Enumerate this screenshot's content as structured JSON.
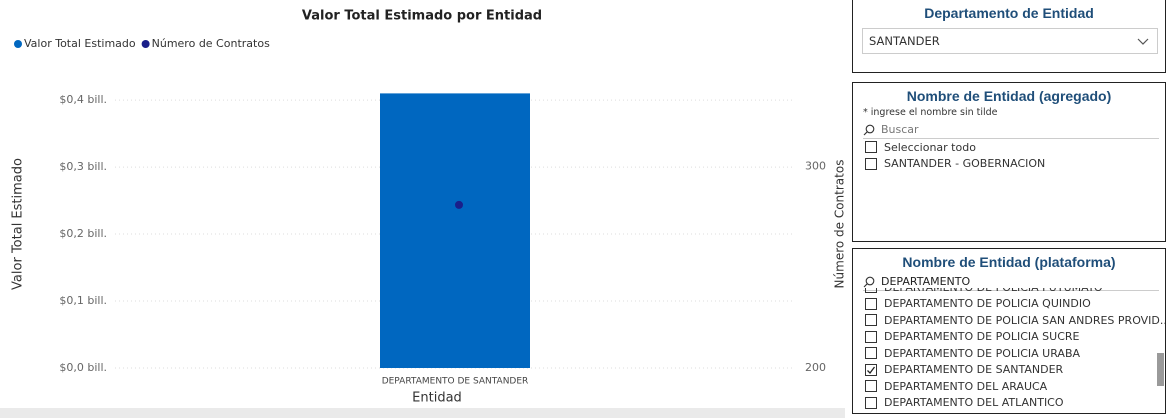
{
  "chart_data": {
    "type": "combo",
    "title": "Valor Total Estimado por Entidad",
    "legend": "top-left",
    "categories": [
      "DEPARTAMENTO DE SANTANDER"
    ],
    "series": [
      {
        "name": "Valor Total Estimado",
        "color": "#0067c0",
        "kind": "bar",
        "values": [
          0.41
        ]
      },
      {
        "name": "Número de Contratos",
        "color": "#1a1f8a",
        "kind": "dot",
        "axis": "y2",
        "values": [
          281
        ]
      }
    ],
    "xlabel": "Entidad",
    "ylabel": "Valor Total Estimado",
    "y2label": "Número de Contratos",
    "ylim": [
      0,
      0.43
    ],
    "yticks": [
      {
        "value": 0,
        "label": "$0,0 bill."
      },
      {
        "value": 0.1,
        "label": "$0,1 bill."
      },
      {
        "value": 0.2,
        "label": "$0,2 bill."
      },
      {
        "value": 0.3,
        "label": "$0,3 bill."
      },
      {
        "value": 0.4,
        "label": "$0,4 bill."
      }
    ],
    "y2lim": [
      200,
      343
    ],
    "y2ticks": [
      200,
      300
    ],
    "grid": true
  },
  "slicers": [
    {
      "title": "Departamento de Entidad",
      "dropdown": "SANTANDER"
    },
    {
      "title": "Nombre de Entidad (agregado)",
      "note": "* ingrese el nombre sin tilde",
      "search": "Buscar",
      "items": [
        {
          "label": "Seleccionar todo",
          "checked": false
        },
        {
          "label": "SANTANDER - GOBERNACION",
          "checked": false
        }
      ]
    },
    {
      "title": "Nombre de Entidad (plataforma)",
      "search": "DEPARTAMENTO",
      "items": [
        {
          "label": "DEPARTAMENTO DE POLICIA PUTUMAYO",
          "checked": false
        },
        {
          "label": "DEPARTAMENTO DE POLICIA QUINDIO",
          "checked": false
        },
        {
          "label": "DEPARTAMENTO DE POLICIA SAN ANDRES PROVID...",
          "checked": false
        },
        {
          "label": "DEPARTAMENTO DE POLICIA SUCRE",
          "checked": false
        },
        {
          "label": "DEPARTAMENTO DE POLICIA URABA",
          "checked": false
        },
        {
          "label": "DEPARTAMENTO DE SANTANDER",
          "checked": true
        },
        {
          "label": "DEPARTAMENTO DEL ARAUCA",
          "checked": false
        },
        {
          "label": "DEPARTAMENTO DEL ATLANTICO",
          "checked": false
        }
      ]
    }
  ]
}
